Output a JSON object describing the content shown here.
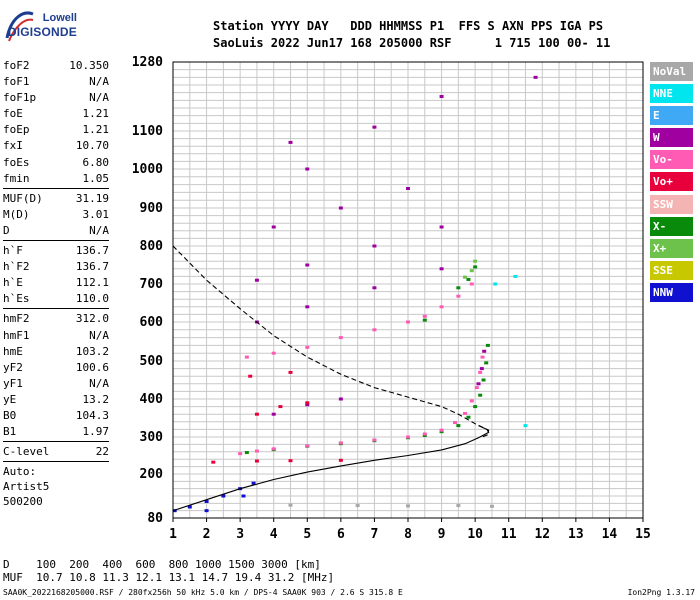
{
  "logo": {
    "line1": "Lowell",
    "line2": "DIGISONDE"
  },
  "header": {
    "line1": "Station YYYY DAY   DDD HHMMSS P1  FFS S AXN PPS IGA PS",
    "line2": "SaoLuis 2022 Jun17 168 205000 RSF      1 715 100 00- 11"
  },
  "params": {
    "group1": [
      {
        "name": "foF2",
        "value": "10.350"
      },
      {
        "name": "foF1",
        "value": "N/A"
      },
      {
        "name": "foF1p",
        "value": "N/A"
      },
      {
        "name": "foE",
        "value": "1.21"
      },
      {
        "name": "foEp",
        "value": "1.21"
      },
      {
        "name": "fxI",
        "value": "10.70"
      },
      {
        "name": "foEs",
        "value": "6.80"
      },
      {
        "name": "fmin",
        "value": "1.05"
      }
    ],
    "group2": [
      {
        "name": "MUF(D)",
        "value": "31.19"
      },
      {
        "name": "M(D)",
        "value": "3.01"
      },
      {
        "name": "D",
        "value": "N/A"
      }
    ],
    "group3": [
      {
        "name": "h`F",
        "value": "136.7"
      },
      {
        "name": "h`F2",
        "value": "136.7"
      },
      {
        "name": "h`E",
        "value": "112.1"
      },
      {
        "name": "h`Es",
        "value": "110.0"
      }
    ],
    "group4": [
      {
        "name": "hmF2",
        "value": "312.0"
      },
      {
        "name": "hmF1",
        "value": "N/A"
      },
      {
        "name": "hmE",
        "value": "103.2"
      },
      {
        "name": "yF2",
        "value": "100.6"
      },
      {
        "name": "yF1",
        "value": "N/A"
      },
      {
        "name": "yE",
        "value": "13.2"
      },
      {
        "name": "B0",
        "value": "104.3"
      },
      {
        "name": "B1",
        "value": "1.97"
      }
    ],
    "group5": [
      {
        "name": "C-level",
        "value": "22"
      }
    ],
    "auto": [
      "Auto:",
      "Artist5",
      "500200"
    ]
  },
  "legend": [
    {
      "label": "NoVal",
      "bg": "#a8a8a8",
      "fg": "#ffffff"
    },
    {
      "label": "NNE",
      "bg": "#00e5ee",
      "fg": "#ffffff"
    },
    {
      "label": "E",
      "bg": "#3fa9f5",
      "fg": "#ffffff"
    },
    {
      "label": "W",
      "bg": "#a000a0",
      "fg": "#ffffff"
    },
    {
      "label": "Vo-",
      "bg": "#ff5ab4",
      "fg": "#ffffff"
    },
    {
      "label": "Vo+",
      "bg": "#e8003c",
      "fg": "#ffffff"
    },
    {
      "label": "SSW",
      "bg": "#f4b4b4",
      "fg": "#ffffff"
    },
    {
      "label": "X-",
      "bg": "#0a8a0a",
      "fg": "#ffffff"
    },
    {
      "label": "X+",
      "bg": "#6cc24a",
      "fg": "#ffffff"
    },
    {
      "label": "SSE",
      "bg": "#c8c800",
      "fg": "#ffffff"
    },
    {
      "label": "NNW",
      "bg": "#1010d0",
      "fg": "#ffffff"
    }
  ],
  "muf_table": {
    "line1": "D    100  200  400  600  800 1000 1500 3000 [km]",
    "line2": "MUF  10.7 10.8 11.3 12.1 13.1 14.7 19.4 31.2 [MHz]"
  },
  "footer": "SAA0K_2022168205000.RSF / 280fx256h 50 kHz 5.0 km / DPS-4 SAA0K 903 / 2.6 S 315.8 E",
  "version": "Ion2Png 1.3.17",
  "chart_data": {
    "type": "scatter",
    "title": "",
    "xlabel": "",
    "ylabel": "",
    "xlim": [
      1,
      15
    ],
    "ylim": [
      80,
      1280
    ],
    "x_ticks": [
      1,
      2,
      3,
      4,
      5,
      6,
      7,
      8,
      9,
      10,
      11,
      12,
      13,
      14,
      15
    ],
    "y_ticks": [
      80,
      200,
      300,
      400,
      500,
      600,
      700,
      800,
      900,
      1000,
      1100,
      1280
    ],
    "grid": true,
    "series": [
      {
        "name": "X-",
        "color": "#0a8a0a",
        "points": [
          [
            3.2,
            258
          ],
          [
            4,
            266
          ],
          [
            5,
            275
          ],
          [
            6,
            282
          ],
          [
            7,
            290
          ],
          [
            8,
            298
          ],
          [
            8.5,
            304
          ],
          [
            9,
            314
          ],
          [
            9.5,
            330
          ],
          [
            9.8,
            352
          ],
          [
            10.0,
            380
          ],
          [
            10.15,
            410
          ],
          [
            10.25,
            450
          ],
          [
            10.33,
            495
          ],
          [
            10.38,
            540
          ],
          [
            10,
            745
          ],
          [
            9.8,
            712
          ],
          [
            9.5,
            690
          ],
          [
            8.5,
            605
          ],
          [
            8,
            600
          ]
        ]
      },
      {
        "name": "Vo-",
        "color": "#ff5ab4",
        "points": [
          [
            3.0,
            255
          ],
          [
            3.5,
            262
          ],
          [
            4,
            268
          ],
          [
            5,
            276
          ],
          [
            6,
            284
          ],
          [
            7,
            292
          ],
          [
            8,
            300
          ],
          [
            8.5,
            308
          ],
          [
            9,
            318
          ],
          [
            9.4,
            338
          ],
          [
            9.7,
            362
          ],
          [
            9.9,
            395
          ],
          [
            10.05,
            430
          ],
          [
            10.15,
            470
          ],
          [
            10.22,
            510
          ],
          [
            3.2,
            510
          ],
          [
            4,
            520
          ],
          [
            5,
            535
          ],
          [
            6,
            560
          ],
          [
            7,
            580
          ],
          [
            8,
            600
          ],
          [
            8.5,
            615
          ],
          [
            9,
            640
          ],
          [
            9.5,
            668
          ],
          [
            9.9,
            700
          ]
        ]
      },
      {
        "name": "W",
        "color": "#a000a0",
        "points": [
          [
            10.1,
            440
          ],
          [
            10.2,
            480
          ],
          [
            10.27,
            525
          ],
          [
            4,
            360
          ],
          [
            5,
            385
          ],
          [
            6,
            400
          ],
          [
            3.5,
            600
          ],
          [
            5,
            640
          ],
          [
            7,
            690
          ],
          [
            9,
            740
          ],
          [
            3.5,
            710
          ],
          [
            5,
            750
          ],
          [
            7,
            800
          ],
          [
            9,
            850
          ],
          [
            4,
            850
          ],
          [
            6,
            900
          ],
          [
            8,
            950
          ],
          [
            5,
            1000
          ],
          [
            4.5,
            1070
          ],
          [
            7,
            1110
          ],
          [
            9,
            1190
          ],
          [
            11.8,
            1240
          ]
        ]
      },
      {
        "name": "Vo+",
        "color": "#e8003c",
        "points": [
          [
            2.2,
            232
          ],
          [
            3.5,
            235
          ],
          [
            4.5,
            236
          ],
          [
            6,
            237
          ],
          [
            3.5,
            360
          ],
          [
            4.2,
            380
          ],
          [
            5,
            390
          ],
          [
            3.3,
            460
          ],
          [
            4.5,
            470
          ]
        ]
      },
      {
        "name": "NNE",
        "color": "#00e5ee",
        "points": [
          [
            10.6,
            700
          ],
          [
            11.2,
            720
          ],
          [
            11.5,
            330
          ]
        ]
      },
      {
        "name": "NoVal",
        "color": "#a8a8a8",
        "points": [
          [
            4.5,
            115
          ],
          [
            6.5,
            114
          ],
          [
            8,
            113
          ],
          [
            9.5,
            114
          ],
          [
            10.5,
            112
          ]
        ]
      },
      {
        "name": "NNW",
        "color": "#1010d0",
        "points": [
          [
            1.05,
            100
          ],
          [
            1.5,
            110
          ],
          [
            2,
            125
          ],
          [
            2.5,
            140
          ],
          [
            3,
            160
          ],
          [
            3.4,
            175
          ],
          [
            3.1,
            140
          ],
          [
            2,
            100
          ]
        ]
      },
      {
        "name": "X+",
        "color": "#6cc24a",
        "points": [
          [
            9.7,
            718
          ],
          [
            9.9,
            735
          ],
          [
            10.0,
            760
          ]
        ]
      }
    ],
    "curves": [
      {
        "name": "profile",
        "style": "solid",
        "points": [
          [
            1,
            100
          ],
          [
            2,
            130
          ],
          [
            3,
            160
          ],
          [
            4,
            185
          ],
          [
            5,
            205
          ],
          [
            6,
            222
          ],
          [
            7,
            237
          ],
          [
            8,
            250
          ],
          [
            9,
            265
          ],
          [
            9.7,
            282
          ],
          [
            10.1,
            298
          ],
          [
            10.4,
            312
          ],
          [
            10.35,
            320
          ],
          [
            10.1,
            330
          ]
        ]
      },
      {
        "name": "muf",
        "style": "dashed",
        "points": [
          [
            1,
            800
          ],
          [
            1.5,
            755
          ],
          [
            2,
            710
          ],
          [
            3,
            635
          ],
          [
            4,
            565
          ],
          [
            5,
            510
          ],
          [
            6,
            465
          ],
          [
            7,
            430
          ],
          [
            8,
            405
          ],
          [
            9,
            380
          ],
          [
            9.5,
            360
          ],
          [
            10.0,
            335
          ],
          [
            10.4,
            318
          ],
          [
            10.38,
            306
          ],
          [
            10.2,
            300
          ]
        ]
      }
    ]
  }
}
